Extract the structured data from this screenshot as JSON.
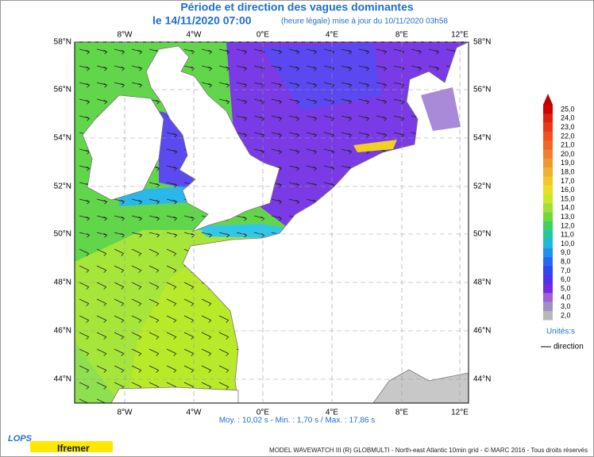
{
  "header": {
    "title": "Période et direction des vagues dominantes",
    "date": "le 14/11/2020 07:00",
    "update": "(heure légale) mise à jour du 10/11/2020 03h58"
  },
  "map": {
    "lon_labels": [
      "8°W",
      "4°W",
      "0°E",
      "4°E",
      "8°E",
      "12°E"
    ],
    "lat_labels": [
      "58°N",
      "56°N",
      "54°N",
      "52°N",
      "50°N",
      "48°N",
      "46°N",
      "44°N"
    ],
    "stats": "Moy. : 10,02 s   -   Min. : 1,70 s / Max. : 17,86 s"
  },
  "legend": {
    "labels": [
      "25,0",
      "24,0",
      "23,0",
      "22,0",
      "21,0",
      "20,0",
      "19,0",
      "18,0",
      "17,0",
      "16,0",
      "15,0",
      "14,0",
      "13,0",
      "12,0",
      "11,0",
      "10,0",
      "9,0",
      "8,0",
      "7,0",
      "6,0",
      "5,0",
      "4,0",
      "3,0",
      "2,0"
    ],
    "unit": "Unités:s",
    "direction": "direction"
  },
  "footer": {
    "logo1": "LOPS",
    "logo2": "Ifremer",
    "credit": "MODEL WAVEWATCH III (R) GLOBMULTI - North-east Atlantic 10min grid - © MARC 2016 - Tous droits réservés"
  }
}
